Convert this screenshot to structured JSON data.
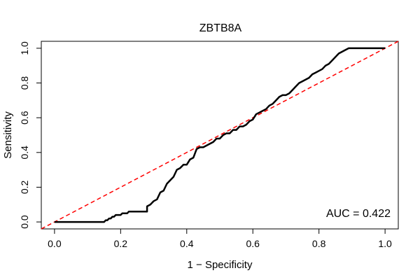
{
  "chart_data": {
    "type": "line",
    "title": "ZBTB8A",
    "xlabel": "1 − Specificity",
    "ylabel": "Sensitivity",
    "xlim": [
      -0.04,
      1.04
    ],
    "ylim": [
      -0.04,
      1.04
    ],
    "x_ticks": [
      0.0,
      0.2,
      0.4,
      0.6,
      0.8,
      1.0
    ],
    "x_tick_labels": [
      "0.0",
      "0.2",
      "0.4",
      "0.6",
      "0.8",
      "1.0"
    ],
    "y_ticks": [
      0.0,
      0.2,
      0.4,
      0.6,
      0.8,
      1.0
    ],
    "y_tick_labels": [
      "0.0",
      "0.2",
      "0.4",
      "0.6",
      "0.8",
      "1.0"
    ],
    "grid": false,
    "annotation": "AUC = 0.422",
    "series": [
      {
        "color": "#000000",
        "style": "solid",
        "x": [
          0.0,
          0.15,
          0.155,
          0.16,
          0.165,
          0.17,
          0.175,
          0.18,
          0.185,
          0.19,
          0.2,
          0.205,
          0.21,
          0.215,
          0.22,
          0.225,
          0.23,
          0.235,
          0.24,
          0.25,
          0.26,
          0.27,
          0.28,
          0.28,
          0.29,
          0.3,
          0.31,
          0.32,
          0.33,
          0.34,
          0.35,
          0.36,
          0.37,
          0.38,
          0.39,
          0.4,
          0.41,
          0.42,
          0.43,
          0.44,
          0.45,
          0.46,
          0.47,
          0.48,
          0.49,
          0.5,
          0.51,
          0.52,
          0.53,
          0.54,
          0.55,
          0.56,
          0.57,
          0.58,
          0.59,
          0.6,
          0.61,
          0.62,
          0.63,
          0.64,
          0.65,
          0.66,
          0.67,
          0.68,
          0.69,
          0.7,
          0.71,
          0.72,
          0.73,
          0.74,
          0.75,
          0.76,
          0.77,
          0.78,
          0.79,
          0.8,
          0.81,
          0.82,
          0.83,
          0.84,
          0.85,
          0.86,
          0.87,
          0.88,
          0.89,
          0.9,
          0.91,
          0.92,
          0.93,
          0.94,
          0.95,
          0.96,
          0.97,
          1.0
        ],
        "y": [
          0.0,
          0.0,
          0.01,
          0.01,
          0.02,
          0.02,
          0.03,
          0.03,
          0.04,
          0.04,
          0.04,
          0.05,
          0.05,
          0.05,
          0.05,
          0.06,
          0.06,
          0.06,
          0.06,
          0.06,
          0.06,
          0.06,
          0.06,
          0.09,
          0.1,
          0.12,
          0.13,
          0.17,
          0.18,
          0.22,
          0.24,
          0.26,
          0.3,
          0.31,
          0.33,
          0.33,
          0.36,
          0.37,
          0.42,
          0.43,
          0.43,
          0.44,
          0.45,
          0.46,
          0.48,
          0.48,
          0.5,
          0.51,
          0.51,
          0.53,
          0.53,
          0.55,
          0.55,
          0.56,
          0.58,
          0.59,
          0.62,
          0.63,
          0.64,
          0.65,
          0.67,
          0.68,
          0.7,
          0.72,
          0.73,
          0.73,
          0.74,
          0.76,
          0.78,
          0.8,
          0.81,
          0.82,
          0.83,
          0.85,
          0.86,
          0.87,
          0.88,
          0.9,
          0.91,
          0.93,
          0.95,
          0.97,
          0.98,
          0.99,
          1.0,
          1.0,
          1.0,
          1.0,
          1.0,
          1.0,
          1.0,
          1.0,
          1.0,
          1.0
        ]
      },
      {
        "color": "#ff0000",
        "style": "dashed",
        "x": [
          -0.04,
          1.04
        ],
        "y": [
          -0.04,
          1.04
        ]
      }
    ]
  }
}
